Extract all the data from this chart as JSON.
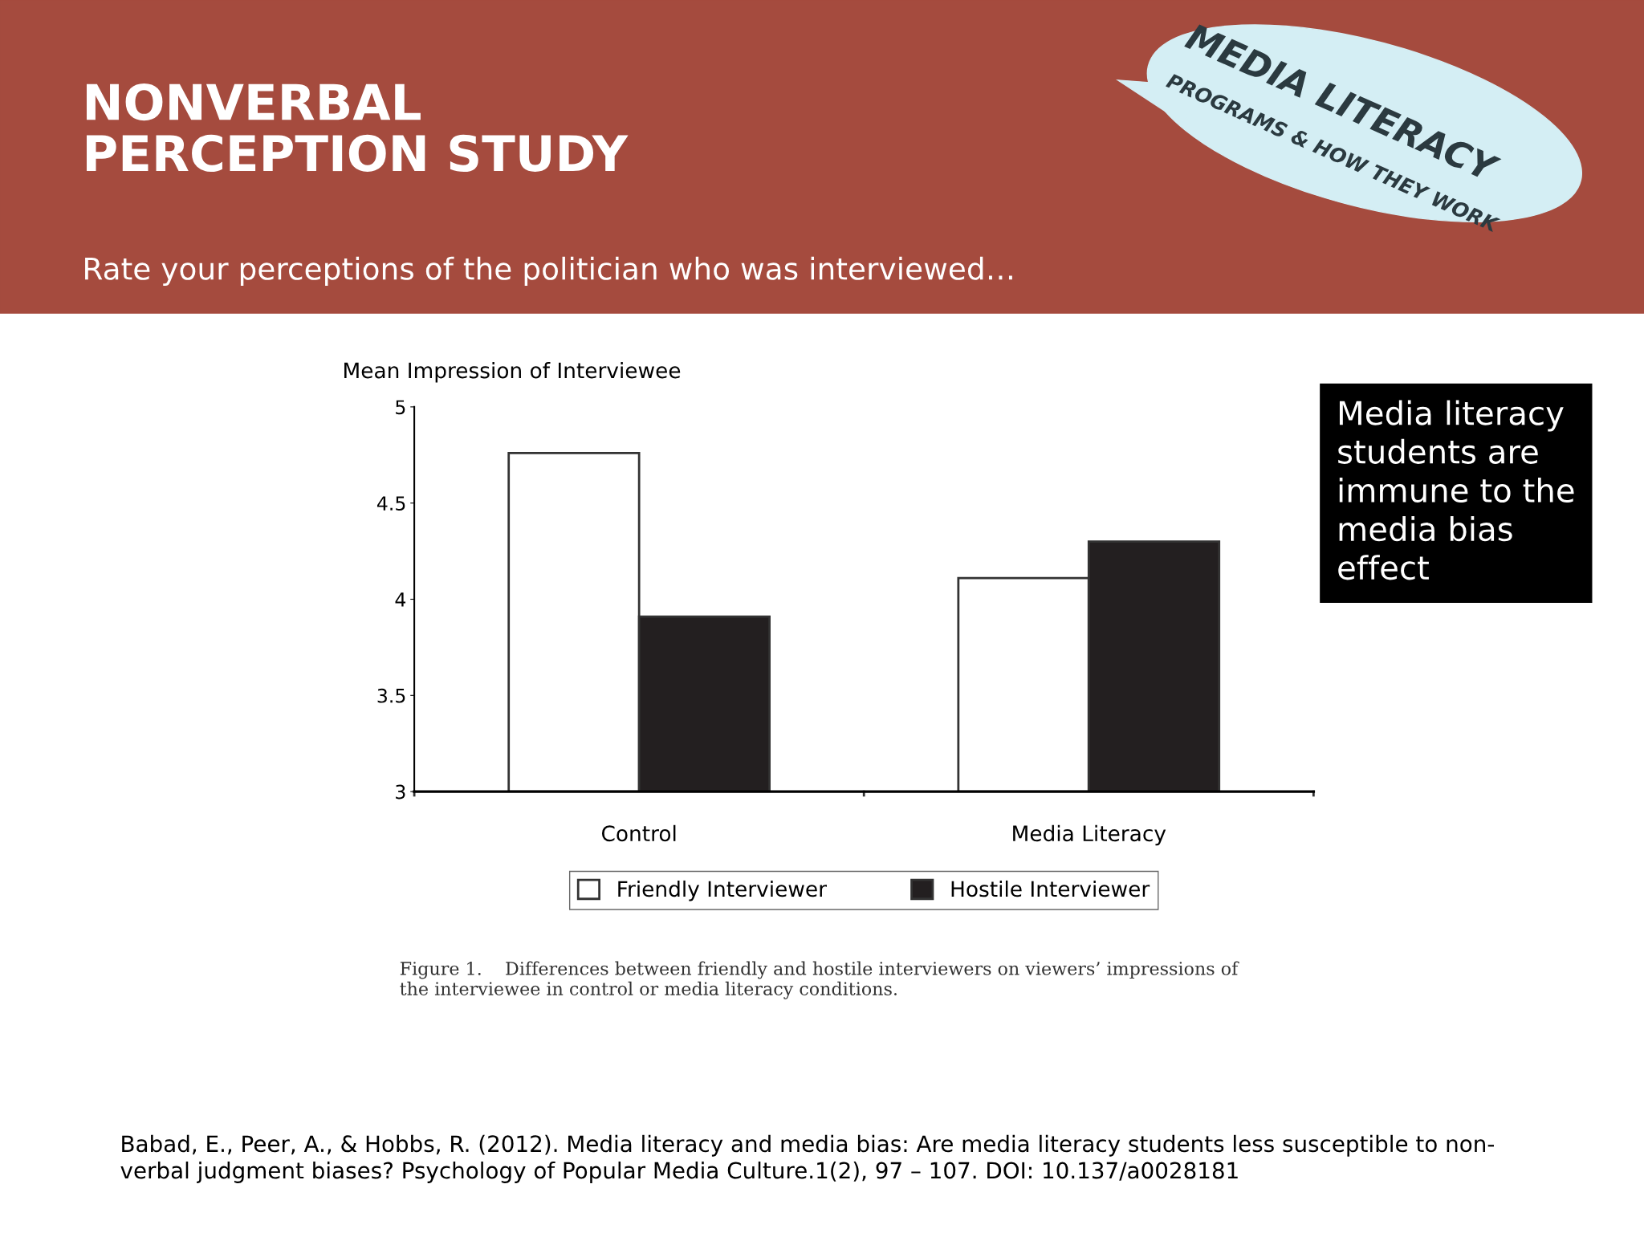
{
  "chart_data": {
    "type": "bar",
    "title": "NONVERBAL\nPERCEPTION STUDY",
    "subtitle": "Rate your perceptions of the politician who was interviewed…",
    "ylabel": "Mean Impression of Interviewee",
    "categories": [
      "Control",
      "Media Literacy"
    ],
    "series": [
      {
        "name": "Friendly Interviewer",
        "color": "#ffffff",
        "values": [
          4.76,
          4.11
        ]
      },
      {
        "name": "Hostile Interviewer",
        "color": "#231f20",
        "values": [
          3.91,
          4.3
        ]
      }
    ],
    "ylim": [
      3,
      5
    ],
    "yticks": [
      3,
      3.5,
      4,
      4.5,
      5
    ],
    "grid": false,
    "legend": "bottom",
    "annotations": [
      "MEDIA LITERACY",
      "PROGRAMS & HOW THEY WORK",
      "Media literacy\nstudents are\nimmune to the\nmedia bias\neffect",
      "Figure 1.    Differences between friendly and hostile interviewers on viewers’ impressions of\nthe interviewee in control or media literacy conditions.",
      "Babad, E., Peer, A., & Hobbs, R. (2012). Media literacy and media bias: Are media literacy students less susceptible to non-\nverbal judgment biases? Psychology of Popular Media Culture.1(2), 97 – 107. DOI: 10.137/a0028181"
    ]
  }
}
